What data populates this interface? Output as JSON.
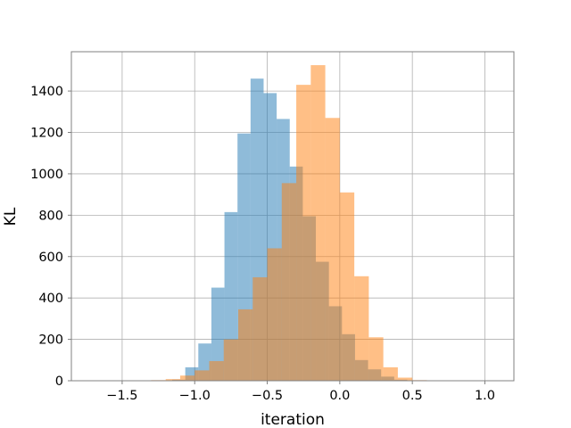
{
  "chart_data": {
    "type": "bar",
    "xlabel": "iteration",
    "ylabel": "KL",
    "xlim": [
      -1.85,
      1.2
    ],
    "ylim": [
      0,
      1590
    ],
    "grid": true,
    "xticks": [
      -1.5,
      -1.0,
      -0.5,
      0.0,
      0.5,
      1.0
    ],
    "xtick_labels": [
      "−1.5",
      "−1.0",
      "−0.5",
      "0.0",
      "0.5",
      "1.0"
    ],
    "yticks": [
      0,
      200,
      400,
      600,
      800,
      1000,
      1200,
      1400
    ],
    "ytick_labels": [
      "0",
      "200",
      "400",
      "600",
      "800",
      "1000",
      "1200",
      "1400"
    ],
    "series": [
      {
        "color": "#1f77b4",
        "alpha": 0.5,
        "bins": [
          {
            "x0": -1.155,
            "x1": -1.065,
            "y": 5
          },
          {
            "x0": -1.065,
            "x1": -0.975,
            "y": 65
          },
          {
            "x0": -0.975,
            "x1": -0.885,
            "y": 180
          },
          {
            "x0": -0.885,
            "x1": -0.795,
            "y": 450
          },
          {
            "x0": -0.795,
            "x1": -0.705,
            "y": 815
          },
          {
            "x0": -0.705,
            "x1": -0.615,
            "y": 1195
          },
          {
            "x0": -0.615,
            "x1": -0.525,
            "y": 1460
          },
          {
            "x0": -0.525,
            "x1": -0.435,
            "y": 1390
          },
          {
            "x0": -0.435,
            "x1": -0.345,
            "y": 1265
          },
          {
            "x0": -0.345,
            "x1": -0.255,
            "y": 1035
          },
          {
            "x0": -0.255,
            "x1": -0.165,
            "y": 795
          },
          {
            "x0": -0.165,
            "x1": -0.075,
            "y": 575
          },
          {
            "x0": -0.075,
            "x1": 0.015,
            "y": 360
          },
          {
            "x0": 0.015,
            "x1": 0.105,
            "y": 225
          },
          {
            "x0": 0.105,
            "x1": 0.195,
            "y": 100
          },
          {
            "x0": 0.195,
            "x1": 0.285,
            "y": 55
          },
          {
            "x0": 0.285,
            "x1": 0.375,
            "y": 20
          },
          {
            "x0": 0.375,
            "x1": 0.465,
            "y": 5
          }
        ]
      },
      {
        "color": "#ff7f0e",
        "alpha": 0.5,
        "bins": [
          {
            "x0": -1.3,
            "x1": -1.2,
            "y": 3
          },
          {
            "x0": -1.2,
            "x1": -1.1,
            "y": 8
          },
          {
            "x0": -1.1,
            "x1": -1.0,
            "y": 25
          },
          {
            "x0": -1.0,
            "x1": -0.9,
            "y": 50
          },
          {
            "x0": -0.9,
            "x1": -0.8,
            "y": 95
          },
          {
            "x0": -0.8,
            "x1": -0.7,
            "y": 200
          },
          {
            "x0": -0.7,
            "x1": -0.6,
            "y": 345
          },
          {
            "x0": -0.6,
            "x1": -0.5,
            "y": 500
          },
          {
            "x0": -0.5,
            "x1": -0.4,
            "y": 640
          },
          {
            "x0": -0.4,
            "x1": -0.3,
            "y": 955
          },
          {
            "x0": -0.3,
            "x1": -0.2,
            "y": 1430
          },
          {
            "x0": -0.2,
            "x1": -0.1,
            "y": 1525
          },
          {
            "x0": -0.1,
            "x1": 0.0,
            "y": 1270
          },
          {
            "x0": 0.0,
            "x1": 0.1,
            "y": 910
          },
          {
            "x0": 0.1,
            "x1": 0.2,
            "y": 505
          },
          {
            "x0": 0.2,
            "x1": 0.3,
            "y": 210
          },
          {
            "x0": 0.3,
            "x1": 0.4,
            "y": 65
          },
          {
            "x0": 0.4,
            "x1": 0.5,
            "y": 15
          },
          {
            "x0": 0.5,
            "x1": 0.6,
            "y": 3
          }
        ]
      }
    ]
  }
}
